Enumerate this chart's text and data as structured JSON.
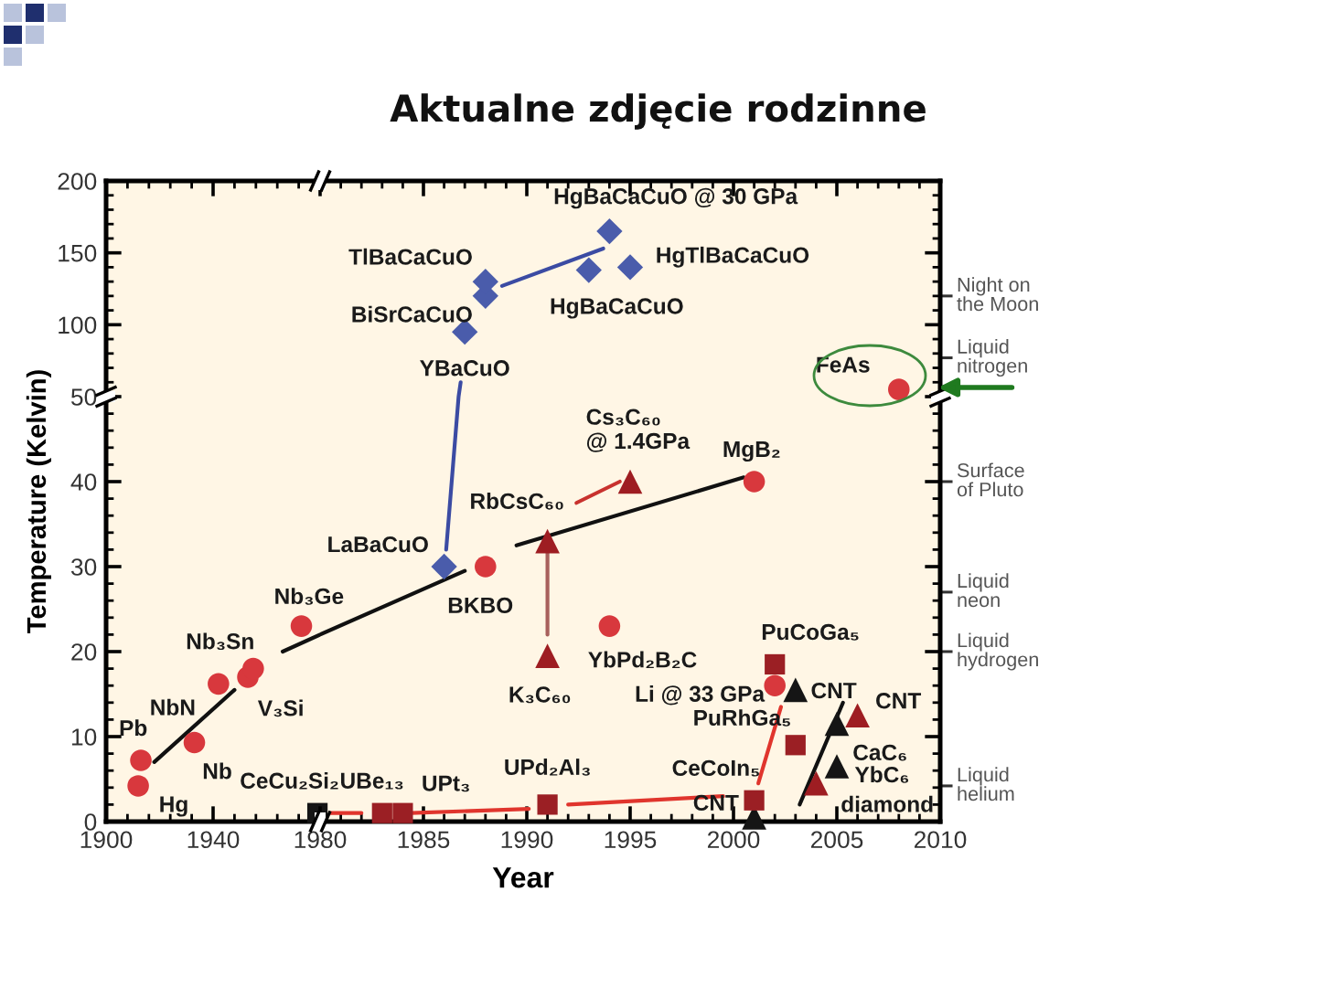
{
  "chart_data": [
    {
      "type": "scatter",
      "xlim": [
        1900,
        1980
      ],
      "xticks": [
        1900,
        1940
      ],
      "ylim": [
        50,
        200
      ],
      "yticks": [
        100,
        150,
        200
      ],
      "tick_labels": "y"
    },
    {
      "type": "scatter",
      "title": "Aktualne zdjęcie rodzinne",
      "xlim": [
        1980,
        2010
      ],
      "xticks": [
        1980,
        1985,
        1990,
        1995,
        2000,
        2005,
        2010
      ],
      "ylim": [
        50,
        200
      ],
      "yticks": [
        100,
        150,
        200
      ],
      "tick_labels": false,
      "series": [
        {
          "type": "line",
          "color": "#3b4ba3",
          "x": [
            1986.7,
            1986.8
          ],
          "values": [
            50,
            60
          ]
        },
        {
          "type": "line",
          "color": "#3b4ba3",
          "x": [
            1988.8,
            1993.7
          ],
          "values": [
            127,
            153
          ]
        },
        {
          "marker": "diamond",
          "color": "#4a5cab",
          "x": [
            1987,
            1988,
            1988,
            1993,
            1995,
            1994
          ],
          "values": [
            95,
            120,
            130,
            138,
            140,
            165
          ]
        },
        {
          "marker": "circle",
          "color": "#d8383d",
          "x": [
            2008
          ],
          "values": [
            55
          ]
        }
      ],
      "ref_lines": [
        {
          "axis": "y",
          "value": 77,
          "label": "Liquid\nnitrogen"
        },
        {
          "axis": "y",
          "value": 120,
          "label": "Night on\nthe Moon"
        }
      ],
      "annotations": [
        {
          "text": "YBaCuO",
          "x": 1987,
          "y": 95
        },
        {
          "text": "BiSrCaCuO",
          "x": 1988,
          "y": 120
        },
        {
          "text": "TlBaCaCuO",
          "x": 1988,
          "y": 130
        },
        {
          "text": "HgBaCaCuO",
          "x": 1993,
          "y": 138
        },
        {
          "text": "HgTlBaCaCuO",
          "x": 1995,
          "y": 140
        },
        {
          "text": "HgBaCaCuO @ 30 GPa",
          "x": 1994,
          "y": 165
        },
        {
          "text": "FeAs",
          "x": 2008,
          "y": 55
        }
      ]
    },
    {
      "type": "scatter",
      "ylabel": "Temperature (Kelvin)",
      "xlim": [
        1900,
        1980
      ],
      "xticks": [
        1900,
        1940
      ],
      "ylim": [
        0,
        50
      ],
      "yticks": [
        0,
        10,
        20,
        30,
        40,
        50
      ],
      "series": [
        {
          "type": "line",
          "color": "#111111",
          "x": [
            1918,
            1948
          ],
          "values": [
            7,
            15.5
          ]
        },
        {
          "type": "line",
          "color": "#111111",
          "x": [
            1966,
            1980
          ],
          "values": [
            20,
            22
          ]
        },
        {
          "marker": "circle",
          "color": "#d8383d",
          "x": [
            1912,
            1913,
            1933,
            1942,
            1953,
            1955,
            1973
          ],
          "values": [
            4.2,
            7.2,
            9.3,
            16.2,
            17,
            18,
            23
          ]
        },
        {
          "marker": "square",
          "color": "#151515",
          "x": [
            1979
          ],
          "values": [
            1
          ]
        }
      ],
      "annotations": [
        {
          "text": "Hg",
          "x": 1912,
          "y": 4.2
        },
        {
          "text": "Pb",
          "x": 1913,
          "y": 7.2
        },
        {
          "text": "Nb",
          "x": 1933,
          "y": 9.3
        },
        {
          "text": "NbN",
          "x": 1942,
          "y": 16.2
        },
        {
          "text": "V₃Si",
          "x": 1953,
          "y": 17
        },
        {
          "text": "Nb₃Sn",
          "x": 1955,
          "y": 18
        },
        {
          "text": "Nb₃Ge",
          "x": 1973,
          "y": 23
        },
        {
          "text": "CeCu₂Si₂",
          "x": 1979,
          "y": 1
        }
      ]
    },
    {
      "type": "scatter",
      "xlabel": "Year",
      "xlim": [
        1980,
        2010
      ],
      "xticks": [
        1980,
        1985,
        1990,
        1995,
        2000,
        2005,
        2010
      ],
      "ylim": [
        0,
        50
      ],
      "yticks": [
        0,
        10,
        20,
        30,
        40,
        50
      ],
      "tick_labels": "x",
      "series": [
        {
          "type": "line",
          "color": "#111111",
          "x": [
            1980,
            1987
          ],
          "values": [
            22,
            29.5
          ]
        },
        {
          "type": "line",
          "color": "#111111",
          "x": [
            1989.5,
            2000.5
          ],
          "values": [
            32.5,
            40.5
          ]
        },
        {
          "type": "line",
          "color": "#111111",
          "x": [
            2003.2,
            2005.3
          ],
          "values": [
            2,
            14
          ]
        },
        {
          "type": "line",
          "color": "#3b4ba3",
          "x": [
            1986.1,
            1986.7
          ],
          "values": [
            32,
            50
          ]
        },
        {
          "type": "line",
          "color": "#a8605c",
          "x": [
            1991,
            1991
          ],
          "values": [
            22,
            32
          ]
        },
        {
          "type": "line",
          "color": "#c8322e",
          "x": [
            1992.4,
            1994.5
          ],
          "values": [
            37.5,
            40
          ]
        },
        {
          "type": "line",
          "color": "#e0352d",
          "x": [
            1980.5,
            1982
          ],
          "values": [
            1,
            1
          ]
        },
        {
          "type": "line",
          "color": "#e0352d",
          "x": [
            1984.4,
            1990.1
          ],
          "values": [
            1,
            1.5
          ]
        },
        {
          "type": "line",
          "color": "#e0352d",
          "x": [
            1992,
            1999.5
          ],
          "values": [
            2,
            3
          ]
        },
        {
          "type": "line",
          "color": "#e0352d",
          "x": [
            2001.2,
            2002.3
          ],
          "values": [
            4.5,
            13.5
          ]
        },
        {
          "marker": "circle",
          "color": "#d8383d",
          "x": [
            1988,
            1994,
            2001,
            2002
          ],
          "values": [
            30,
            23,
            40,
            16
          ]
        },
        {
          "marker": "diamond",
          "color": "#4a5cab",
          "x": [
            1986
          ],
          "values": [
            30
          ]
        },
        {
          "marker": "triangle",
          "color": "#9e1d22",
          "x": [
            1991,
            1991,
            1995,
            2006,
            2004
          ],
          "values": [
            19.5,
            33,
            40,
            12.5,
            4.5
          ]
        },
        {
          "marker": "triangle",
          "color": "#151515",
          "x": [
            2003,
            2005,
            2005,
            2001
          ],
          "values": [
            15.5,
            11.5,
            6.5,
            0.5
          ]
        },
        {
          "marker": "square",
          "color": "#9b1f24",
          "x": [
            1983,
            1984,
            1991,
            2001,
            2002,
            2003
          ],
          "values": [
            1,
            1,
            2,
            2.5,
            18.5,
            9
          ]
        }
      ],
      "ref_lines": [
        {
          "axis": "y",
          "value": 4.2,
          "label": "Liquid\nhelium"
        },
        {
          "axis": "y",
          "value": 20,
          "label": "Liquid\nhydrogen"
        },
        {
          "axis": "y",
          "value": 27,
          "label": "Liquid\nneon"
        },
        {
          "axis": "y",
          "value": 40,
          "label": "Surface\nof Pluto"
        }
      ],
      "annotations": [
        {
          "text": "LaBaCuO",
          "x": 1986,
          "y": 30
        },
        {
          "text": "BKBO",
          "x": 1988,
          "y": 30
        },
        {
          "text": "RbCsC₆₀",
          "x": 1991,
          "y": 33
        },
        {
          "text": "K₃C₆₀",
          "x": 1991,
          "y": 19.5
        },
        {
          "text": "Cs₃C₆₀\n@ 1.4GPa",
          "x": 1995,
          "y": 40
        },
        {
          "text": "MgB₂",
          "x": 2001,
          "y": 40
        },
        {
          "text": "YbPd₂B₂C",
          "x": 1994,
          "y": 23
        },
        {
          "text": "PuCoGa₅",
          "x": 2002,
          "y": 18.5
        },
        {
          "text": "Li @ 33 GPa",
          "x": 2002,
          "y": 16
        },
        {
          "text": "CNT",
          "x": 2003,
          "y": 15.5
        },
        {
          "text": "PuRhGa₅",
          "x": 2003,
          "y": 9
        },
        {
          "text": "CNT",
          "x": 2006,
          "y": 12.5
        },
        {
          "text": "CaC₆",
          "x": 2005,
          "y": 11.5
        },
        {
          "text": "YbC₆",
          "x": 2005,
          "y": 6.5
        },
        {
          "text": "diamond",
          "x": 2004,
          "y": 4.5
        },
        {
          "text": "CeCoIn₅",
          "x": 2001,
          "y": 2.5
        },
        {
          "text": "CNT",
          "x": 2001,
          "y": 0.5
        },
        {
          "text": "UPd₂Al₃",
          "x": 1991,
          "y": 2
        },
        {
          "text": "UPt₃",
          "x": 1984,
          "y": 1
        },
        {
          "text": "UBe₁₃",
          "x": 1983,
          "y": 1
        }
      ]
    }
  ]
}
